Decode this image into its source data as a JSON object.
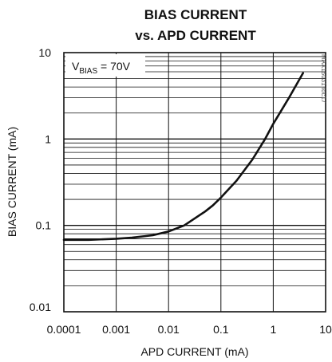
{
  "chart_data": {
    "type": "line",
    "title": [
      "BIAS CURRENT",
      "vs. APD CURRENT"
    ],
    "xlabel": "APD CURRENT (mA)",
    "ylabel": "BIAS CURRENT (mA)",
    "xscale": "log",
    "yscale": "log",
    "xlim": [
      0.0001,
      10
    ],
    "ylim": [
      0.01,
      10
    ],
    "xticks": [
      "0.0001",
      "0.001",
      "0.01",
      "0.1",
      "1",
      "10"
    ],
    "yticks": [
      "0.01",
      "0.1",
      "1",
      "10"
    ],
    "grid": true,
    "annotation": {
      "main": "V",
      "sub": "BIAS",
      "rest": " = 70V"
    },
    "watermark": "MAX15031 toc17",
    "series": [
      {
        "x": [
          0.0001,
          0.0003,
          0.001,
          0.002,
          0.005,
          0.01,
          0.02,
          0.05,
          0.07,
          0.1,
          0.2,
          0.4,
          0.7,
          1,
          2,
          3.7
        ],
        "y": [
          0.068,
          0.068,
          0.07,
          0.072,
          0.077,
          0.085,
          0.1,
          0.145,
          0.17,
          0.21,
          0.33,
          0.58,
          1.0,
          1.5,
          3.0,
          5.8
        ]
      }
    ]
  }
}
